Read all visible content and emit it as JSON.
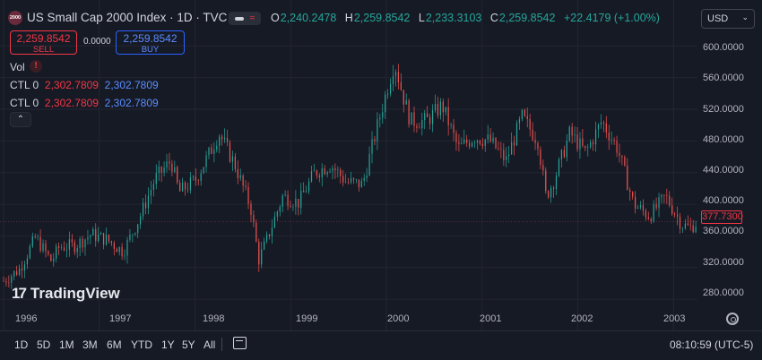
{
  "header": {
    "logo_text": "2000",
    "title": "US Small Cap 2000 Index · 1D · TVC",
    "ohlc": [
      {
        "k": "O",
        "v": "2,240.2478"
      },
      {
        "k": "H",
        "v": "2,259.8542"
      },
      {
        "k": "L",
        "v": "2,233.3103"
      },
      {
        "k": "C",
        "v": "2,259.8542"
      }
    ],
    "change": "+22.4179 (+1.00%)",
    "eye_icon": "eye-icon",
    "wave_icon": "wave-icon"
  },
  "trade": {
    "sell_price": "2,259.8542",
    "sell_label": "SELL",
    "spread": "0.0000",
    "buy_price": "2,259.8542",
    "buy_label": "BUY",
    "sell_color": "#f23645",
    "buy_color": "#2962ff"
  },
  "indicators": {
    "vol_label": "Vol",
    "warn_glyph": "!",
    "ctl_rows": [
      {
        "label": "CTL 0",
        "red": "2,302.7809",
        "blue": "2,302.7809"
      },
      {
        "label": "CTL 0",
        "red": "2,302.7809",
        "blue": "2,302.7809"
      }
    ],
    "collapse_glyph": "⌃"
  },
  "currency": {
    "label": "USD"
  },
  "price_axis": {
    "labels": [
      "600.0000",
      "560.0000",
      "520.0000",
      "480.0000",
      "440.0000",
      "400.0000",
      "360.0000",
      "320.0000",
      "280.0000"
    ],
    "current_price": "377.7300"
  },
  "time_axis": {
    "labels": [
      "1996",
      "1997",
      "1998",
      "1999",
      "2000",
      "2001",
      "2002",
      "2003"
    ]
  },
  "watermark": {
    "mark": "17",
    "text": "TradingView"
  },
  "bottom": {
    "ranges": [
      "1D",
      "5D",
      "1M",
      "3M",
      "6M",
      "YTD",
      "1Y",
      "5Y",
      "All"
    ],
    "clock": "08:10:59 (UTC-5)"
  },
  "colors": {
    "up": "#26a69a",
    "down": "#ef5350",
    "bg": "#161a25",
    "grid": "#232632"
  },
  "chart_data": {
    "type": "candlestick",
    "x_start": "1996-01",
    "x_end": "2003-04",
    "ylim": [
      270,
      615
    ],
    "grid": true,
    "series": [
      {
        "x": [
          "1996-01",
          "1996-03",
          "1996-05",
          "1996-07",
          "1996-08",
          "1996-10",
          "1996-12",
          "1997-02",
          "1997-04",
          "1997-06",
          "1997-08",
          "1997-10",
          "1997-11",
          "1998-01",
          "1998-03",
          "1998-04",
          "1998-06",
          "1998-08",
          "1998-09",
          "1998-10",
          "1998-12",
          "1999-02",
          "1999-04",
          "1999-06",
          "1999-08",
          "1999-10",
          "1999-12",
          "2000-02",
          "2000-03",
          "2000-04",
          "2000-06",
          "2000-08",
          "2000-10",
          "2000-12",
          "2001-02",
          "2001-04",
          "2001-06",
          "2001-08",
          "2001-09",
          "2001-10",
          "2001-12",
          "2002-02",
          "2002-04",
          "2002-06",
          "2002-08",
          "2002-10",
          "2002-12",
          "2003-02",
          "2003-03",
          "2003-04"
        ],
        "values": [
          303,
          318,
          358,
          328,
          346,
          348,
          362,
          355,
          340,
          382,
          432,
          455,
          415,
          430,
          468,
          490,
          450,
          395,
          330,
          355,
          410,
          402,
          440,
          450,
          428,
          425,
          504,
          580,
          540,
          505,
          505,
          525,
          470,
          485,
          480,
          455,
          510,
          480,
          410,
          430,
          490,
          465,
          505,
          470,
          400,
          385,
          410,
          375,
          370,
          377.73
        ]
      }
    ]
  }
}
